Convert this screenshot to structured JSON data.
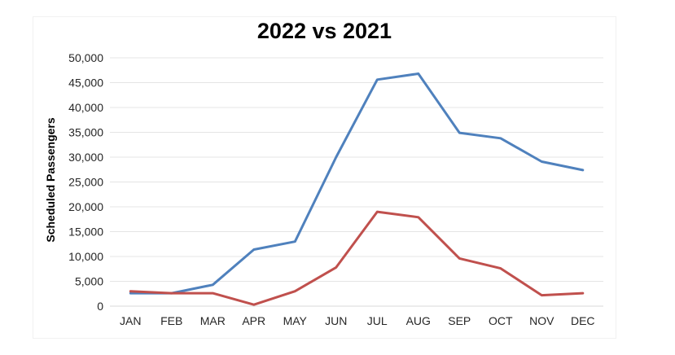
{
  "chart_data": {
    "type": "line",
    "title": "2022 vs 2021",
    "xlabel": "",
    "ylabel": "Scheduled Passengers",
    "categories": [
      "JAN",
      "FEB",
      "MAR",
      "APR",
      "MAY",
      "JUN",
      "JUL",
      "AUG",
      "SEP",
      "OCT",
      "NOV",
      "DEC"
    ],
    "series": [
      {
        "color": "#4f81bd",
        "values": [
          2600,
          2600,
          4300,
          11400,
          13000,
          30000,
          45600,
          46800,
          34900,
          33800,
          29100,
          27400
        ]
      },
      {
        "color": "#c0504d",
        "values": [
          3000,
          2600,
          2600,
          300,
          3000,
          7800,
          19000,
          17900,
          9600,
          7600,
          2200,
          2600
        ]
      }
    ],
    "y_ticks": [
      "0",
      "5,000",
      "10,000",
      "15,000",
      "20,000",
      "25,000",
      "30,000",
      "35,000",
      "40,000",
      "45,000",
      "50,000"
    ],
    "ylim": [
      0,
      50000
    ],
    "grid": true,
    "legend": "none"
  }
}
